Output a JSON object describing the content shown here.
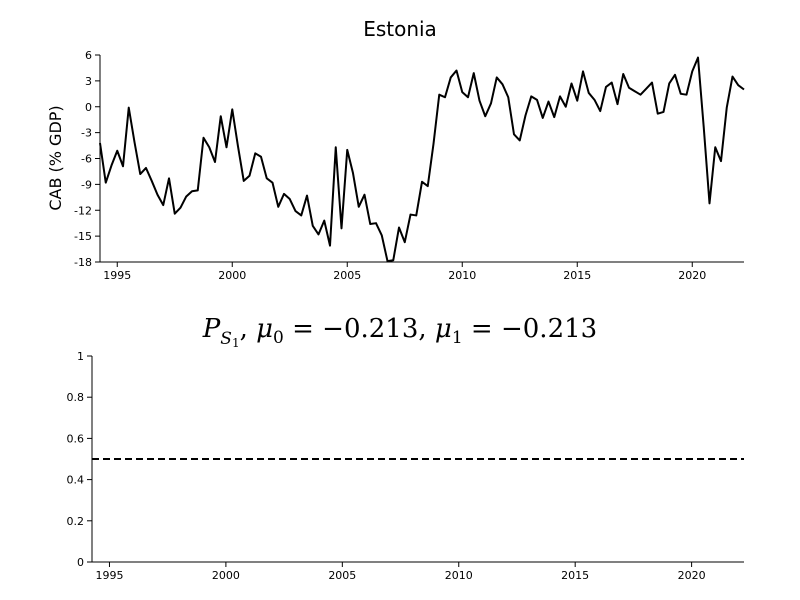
{
  "chart_data": [
    {
      "type": "line",
      "title": "Estonia",
      "ylabel": "CAB (% GDP)",
      "xlabel": "",
      "xlim": [
        1994.25,
        2022.25
      ],
      "ylim": [
        -18,
        6
      ],
      "x_ticks": [
        "1995",
        "2000",
        "2005",
        "2010",
        "2015",
        "2020"
      ],
      "y_ticks": [
        "6",
        "3",
        "0",
        "-3",
        "-6",
        "-9",
        "-12",
        "-15",
        "-18"
      ],
      "grid": false,
      "series": [
        {
          "color": "#000000",
          "x": [
            1994.25,
            1994.5,
            1994.75,
            1995.0,
            1995.25,
            1995.5,
            1995.75,
            1996.0,
            1996.25,
            1996.5,
            1996.75,
            1997.0,
            1997.25,
            1997.5,
            1997.75,
            1998.0,
            1998.25,
            1998.5,
            1998.75,
            1999.0,
            1999.25,
            1999.5,
            1999.75,
            2000.0,
            2000.25,
            2000.5,
            2000.75,
            2001.0,
            2001.25,
            2001.5,
            2001.75,
            2002.0,
            2002.25,
            2002.5,
            2002.75,
            2003.0,
            2003.25,
            2003.5,
            2003.75,
            2004.0,
            2004.25,
            2004.5,
            2004.75,
            2005.0,
            2005.25,
            2005.5,
            2005.75,
            2006.0,
            2006.25,
            2006.5,
            2006.75,
            2007.0,
            2007.25,
            2007.5,
            2007.75,
            2008.0,
            2008.25,
            2008.5,
            2008.75,
            2009.0,
            2009.25,
            2009.5,
            2009.75,
            2010.0,
            2010.25,
            2010.5,
            2010.75,
            2011.0,
            2011.25,
            2011.5,
            2011.75,
            2012.0,
            2012.25,
            2012.5,
            2012.75,
            2013.0,
            2013.25,
            2013.5,
            2013.75,
            2014.0,
            2014.25,
            2014.5,
            2014.75,
            2015.0,
            2015.25,
            2015.5,
            2015.75,
            2016.0,
            2016.25,
            2016.5,
            2016.75,
            2017.0,
            2017.25,
            2017.5,
            2017.75,
            2018.0,
            2018.25,
            2018.5,
            2018.75,
            2019.0,
            2019.25,
            2019.5,
            2019.75,
            2020.0,
            2020.25,
            2020.5,
            2020.75,
            2021.0,
            2021.25,
            2021.5,
            2021.75,
            2022.0,
            2022.25
          ],
          "y": [
            -4.2,
            -8.8,
            -6.8,
            -5.1,
            -6.9,
            -0.1,
            -4.1,
            -7.8,
            -7.1,
            -8.6,
            -10.2,
            -11.4,
            -8.3,
            -12.4,
            -11.7,
            -10.4,
            -9.8,
            -9.7,
            -3.6,
            -4.7,
            -6.4,
            -1.1,
            -4.7,
            -0.3,
            -4.6,
            -8.6,
            -8.0,
            -5.4,
            -5.8,
            -8.3,
            -8.8,
            -11.6,
            -10.1,
            -10.7,
            -12.1,
            -12.6,
            -10.3,
            -13.8,
            -14.8,
            -13.2,
            -16.1,
            -4.7,
            -14.1,
            -5.0,
            -7.7,
            -11.6,
            -10.2,
            -13.6,
            -13.5,
            -14.9,
            -17.9,
            -17.8,
            -14.0,
            -15.7,
            -12.5,
            -12.6,
            -8.7,
            -9.2,
            -4.3,
            1.4,
            1.1,
            3.4,
            4.2,
            1.7,
            1.1,
            3.9,
            0.7,
            -1.1,
            0.4,
            3.4,
            2.6,
            1.1,
            -3.2,
            -3.9,
            -1.0,
            1.2,
            0.8,
            -1.3,
            0.6,
            -1.2,
            1.2,
            0.0,
            2.7,
            0.7,
            4.1,
            1.6,
            0.8,
            -0.5,
            2.3,
            2.8,
            0.3,
            3.8,
            2.2,
            1.8,
            1.4,
            2.1,
            2.8,
            -0.8,
            -0.6,
            2.7,
            3.7,
            1.5,
            1.4,
            4.1,
            5.7,
            -2.4,
            -11.2,
            -4.7,
            -6.3,
            -0.1,
            3.5,
            2.5,
            2.0
          ]
        }
      ]
    },
    {
      "type": "line",
      "title": "",
      "xlabel": "",
      "ylabel": "",
      "xlim": [
        1994.25,
        2022.25
      ],
      "ylim": [
        0,
        1
      ],
      "x_ticks": [
        "1995",
        "2000",
        "2005",
        "2010",
        "2015",
        "2020"
      ],
      "y_ticks": [
        "0",
        "0.2",
        "0.4",
        "0.6",
        "0.8",
        "1"
      ],
      "grid": false,
      "series": [
        {
          "color": "#000000",
          "line_style": "dashed",
          "x": [
            1994.25,
            2022.25
          ],
          "y": [
            0.5,
            0.5
          ]
        }
      ]
    }
  ],
  "equation": {
    "p": "P",
    "p_sub": "S",
    "p_sub_sub": "1",
    "sep1": ", ",
    "mu": "μ",
    "mu0_sub": "0",
    "mu0_val": " = −0.213, ",
    "mu1_sub": "1",
    "mu1_val": " = −0.213"
  }
}
